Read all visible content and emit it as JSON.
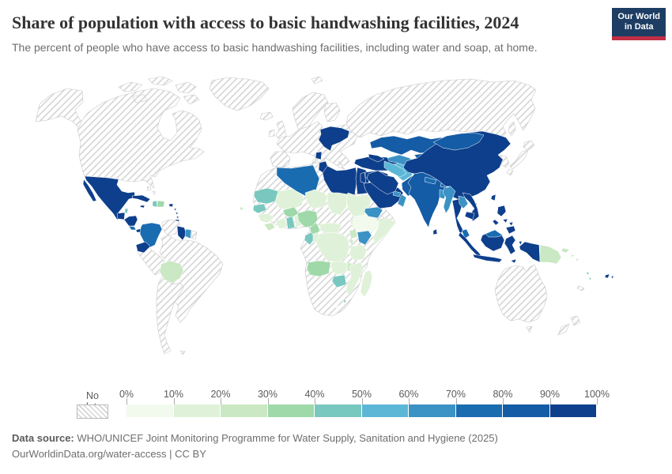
{
  "header": {
    "title": "Share of population with access to basic handwashing facilities, 2024",
    "subtitle": "The percent of people who have access to basic handwashing facilities, including water and soap, at home.",
    "logo_line1": "Our World",
    "logo_line2": "in Data",
    "logo_bg": "#1d3d63",
    "logo_accent": "#c12f45"
  },
  "legend": {
    "no_data_label": "No data",
    "ticks": [
      "0%",
      "10%",
      "20%",
      "30%",
      "40%",
      "50%",
      "60%",
      "70%",
      "80%",
      "90%",
      "100%"
    ],
    "bands": [
      {
        "range": "0-10%",
        "color": "#f2faee"
      },
      {
        "range": "10-20%",
        "color": "#dff2d9"
      },
      {
        "range": "20-30%",
        "color": "#c9e8c3"
      },
      {
        "range": "30-40%",
        "color": "#9fd9a9"
      },
      {
        "range": "40-50%",
        "color": "#79c8bf"
      },
      {
        "range": "50-60%",
        "color": "#5cb7d7"
      },
      {
        "range": "60-70%",
        "color": "#3b92c4"
      },
      {
        "range": "70-80%",
        "color": "#1a6cb1"
      },
      {
        "range": "80-90%",
        "color": "#145ca6"
      },
      {
        "range": "90-100%",
        "color": "#0e3f8c"
      }
    ]
  },
  "footer": {
    "source_prefix": "Data source:",
    "source_text": " WHO/UNICEF Joint Monitoring Programme for Water Supply, Sanitation and Hygiene (2025)",
    "url_text": "OurWorldinData.org/water-access | CC BY"
  },
  "chart_data": {
    "type": "heatmap",
    "subtype": "choropleth-world-map",
    "title": "Share of population with access to basic handwashing facilities, 2024",
    "unit": "%",
    "bins": [
      0,
      10,
      20,
      30,
      40,
      50,
      60,
      70,
      80,
      90,
      100
    ],
    "legend_position": "bottom",
    "regions": [
      {
        "id": "alaska",
        "name": "United States (Alaska)",
        "band": "no_data"
      },
      {
        "id": "canada_usa",
        "name": "Canada and United States",
        "band": "no_data"
      },
      {
        "id": "arctic_islands",
        "name": "Canadian Arctic Islands",
        "band": "no_data"
      },
      {
        "id": "greenland",
        "name": "Greenland",
        "band": "no_data"
      },
      {
        "id": "iceland",
        "name": "Iceland",
        "band": "no_data"
      },
      {
        "id": "svalbard",
        "name": "Svalbard",
        "band": "no_data"
      },
      {
        "id": "uk",
        "name": "United Kingdom",
        "band": "no_data"
      },
      {
        "id": "ireland",
        "name": "Ireland",
        "band": "no_data"
      },
      {
        "id": "scandinavia",
        "name": "Norway and Sweden",
        "band": "no_data"
      },
      {
        "id": "finland",
        "name": "Finland",
        "band": "no_data"
      },
      {
        "id": "europe_mainland",
        "name": "Mainland Europe",
        "band": "no_data"
      },
      {
        "id": "sardinia",
        "name": "Sardinia",
        "band": "no_data"
      },
      {
        "id": "russia",
        "name": "Russia",
        "band": "no_data"
      },
      {
        "id": "sakhalin",
        "name": "Sakhalin",
        "band": "no_data"
      },
      {
        "id": "ukraine",
        "name": "Ukraine",
        "band": 10
      },
      {
        "id": "serbia",
        "name": "Serbia",
        "band": 10
      },
      {
        "id": "africa_base",
        "name": "Africa (no data regions)",
        "band": "no_data"
      },
      {
        "id": "algeria",
        "name": "Algeria",
        "band": 8
      },
      {
        "id": "tunisia",
        "name": "Tunisia",
        "band": 10
      },
      {
        "id": "libya",
        "name": "Libya",
        "band": 10
      },
      {
        "id": "egypt",
        "name": "Egypt",
        "band": 10
      },
      {
        "id": "mauritania",
        "name": "Mauritania",
        "band": 5
      },
      {
        "id": "senegal",
        "name": "Senegal",
        "band": 5
      },
      {
        "id": "guinea",
        "name": "Guinea",
        "band": 2
      },
      {
        "id": "sierra_leone_liberia",
        "name": "Sierra Leone and Liberia",
        "band": 3
      },
      {
        "id": "mali",
        "name": "Mali",
        "band": 2
      },
      {
        "id": "burkina_faso",
        "name": "Burkina Faso",
        "band": 4
      },
      {
        "id": "ivory_coast",
        "name": "Cote d'Ivoire",
        "band": 2
      },
      {
        "id": "ghana",
        "name": "Ghana",
        "band": 5
      },
      {
        "id": "togo_benin",
        "name": "Togo and Benin",
        "band": 2
      },
      {
        "id": "niger",
        "name": "Niger",
        "band": 2
      },
      {
        "id": "nigeria",
        "name": "Nigeria",
        "band": 4
      },
      {
        "id": "chad",
        "name": "Chad",
        "band": 2
      },
      {
        "id": "sudan",
        "name": "Sudan",
        "band": 2
      },
      {
        "id": "cameroon",
        "name": "Cameroon",
        "band": 4
      },
      {
        "id": "central_african_republic",
        "name": "Central African Republic",
        "band": 2
      },
      {
        "id": "south_sudan",
        "name": "South Sudan",
        "band": 2
      },
      {
        "id": "ethiopia",
        "name": "Ethiopia",
        "band": 1
      },
      {
        "id": "somalia",
        "name": "Somalia",
        "band": 2
      },
      {
        "id": "eritrea_djibouti",
        "name": "Eritrea and Djibouti",
        "band": "no_data"
      },
      {
        "id": "kenya",
        "name": "Kenya",
        "band": 7
      },
      {
        "id": "uganda",
        "name": "Uganda",
        "band": 3
      },
      {
        "id": "rwanda_burundi",
        "name": "Rwanda and Burundi",
        "band": 3
      },
      {
        "id": "gabon",
        "name": "Gabon",
        "band": 5
      },
      {
        "id": "congo",
        "name": "Congo",
        "band": 2
      },
      {
        "id": "drc",
        "name": "Democratic Republic of Congo",
        "band": 2
      },
      {
        "id": "tanzania",
        "name": "Tanzania",
        "band": 2
      },
      {
        "id": "angola",
        "name": "Angola",
        "band": 4
      },
      {
        "id": "zambia",
        "name": "Zambia",
        "band": 2
      },
      {
        "id": "malawi",
        "name": "Malawi",
        "band": 3
      },
      {
        "id": "mozambique",
        "name": "Mozambique",
        "band": 2
      },
      {
        "id": "zimbabwe",
        "name": "Zimbabwe",
        "band": 5
      },
      {
        "id": "lesotho",
        "name": "Lesotho",
        "band": 1
      },
      {
        "id": "eswatini",
        "name": "Eswatini",
        "band": 5
      },
      {
        "id": "madagascar",
        "name": "Madagascar",
        "band": 2
      },
      {
        "id": "cape_verde",
        "name": "Cape Verde",
        "band": 3
      },
      {
        "id": "turkey",
        "name": "Turkey",
        "band": 10
      },
      {
        "id": "caucasus",
        "name": "Georgia, Armenia and Azerbaijan",
        "band": 10
      },
      {
        "id": "syria_iraq",
        "name": "Syria and Iraq",
        "band": 10
      },
      {
        "id": "levant",
        "name": "Jordan, Israel and Lebanon",
        "band": 10
      },
      {
        "id": "saudi_arabia",
        "name": "Saudi Arabia",
        "band": 10
      },
      {
        "id": "yemen",
        "name": "Yemen",
        "band": 7
      },
      {
        "id": "oman",
        "name": "Oman",
        "band": 7
      },
      {
        "id": "uae",
        "name": "United Arab Emirates",
        "band": 7
      },
      {
        "id": "iran",
        "name": "Iran",
        "band": 10
      },
      {
        "id": "afghanistan",
        "name": "Afghanistan",
        "band": 6
      },
      {
        "id": "pakistan",
        "name": "Pakistan",
        "band": 9
      },
      {
        "id": "kazakhstan",
        "name": "Kazakhstan",
        "band": 9
      },
      {
        "id": "uzbekistan",
        "name": "Uzbekistan",
        "band": 7
      },
      {
        "id": "turkmenistan",
        "name": "Turkmenistan",
        "band": 6
      },
      {
        "id": "kyrgyzstan",
        "name": "Kyrgyzstan",
        "band": 9
      },
      {
        "id": "tajikistan",
        "name": "Tajikistan",
        "band": 10
      },
      {
        "id": "india",
        "name": "India",
        "band": 9
      },
      {
        "id": "nepal",
        "name": "Nepal",
        "band": 8
      },
      {
        "id": "bhutan",
        "name": "Bhutan",
        "band": 8
      },
      {
        "id": "bangladesh",
        "name": "Bangladesh",
        "band": 7
      },
      {
        "id": "sri_lanka",
        "name": "Sri Lanka",
        "band": 10
      },
      {
        "id": "china",
        "name": "China",
        "band": 10
      },
      {
        "id": "mongolia",
        "name": "Mongolia",
        "band": 9
      },
      {
        "id": "korea",
        "name": "Korea",
        "band": "no_data"
      },
      {
        "id": "japan",
        "name": "Japan",
        "band": "no_data"
      },
      {
        "id": "taiwan",
        "name": "Taiwan",
        "band": 10
      },
      {
        "id": "hainan",
        "name": "Hainan",
        "band": 10
      },
      {
        "id": "myanmar",
        "name": "Myanmar",
        "band": 7
      },
      {
        "id": "thailand",
        "name": "Thailand",
        "band": 10
      },
      {
        "id": "laos",
        "name": "Laos",
        "band": 7
      },
      {
        "id": "vietnam",
        "name": "Vietnam",
        "band": 10
      },
      {
        "id": "cambodia",
        "name": "Cambodia",
        "band": 10
      },
      {
        "id": "malaysia_peninsula",
        "name": "Malaysia (Peninsula)",
        "band": 8
      },
      {
        "id": "sumatra",
        "name": "Indonesia (Sumatra)",
        "band": 10
      },
      {
        "id": "java",
        "name": "Indonesia (Java)",
        "band": 10
      },
      {
        "id": "borneo",
        "name": "Indonesia (Kalimantan)",
        "band": 10
      },
      {
        "id": "malaysia_borneo",
        "name": "Malaysia (Borneo)",
        "band": 8
      },
      {
        "id": "sulawesi",
        "name": "Indonesia (Sulawesi)",
        "band": 10
      },
      {
        "id": "maluku",
        "name": "Indonesia (Maluku)",
        "band": 10
      },
      {
        "id": "timor",
        "name": "Timor",
        "band": 10
      },
      {
        "id": "philippines",
        "name": "Philippines",
        "band": 10
      },
      {
        "id": "west_papua",
        "name": "Indonesia (Papua)",
        "band": 10
      },
      {
        "id": "papua_new_guinea",
        "name": "Papua New Guinea",
        "band": 3
      },
      {
        "id": "new_britain",
        "name": "New Britain",
        "band": 3
      },
      {
        "id": "solomon_islands",
        "name": "Solomon Islands",
        "band": 3
      },
      {
        "id": "vanuatu",
        "name": "Vanuatu",
        "band": 5
      },
      {
        "id": "fiji",
        "name": "Fiji",
        "band": 10
      },
      {
        "id": "new_caledonia",
        "name": "New Caledonia",
        "band": "no_data"
      },
      {
        "id": "australia",
        "name": "Australia",
        "band": "no_data"
      },
      {
        "id": "tasmania",
        "name": "Tasmania",
        "band": "no_data"
      },
      {
        "id": "new_zealand",
        "name": "New Zealand",
        "band": "no_data"
      },
      {
        "id": "mexico",
        "name": "Mexico",
        "band": 10
      },
      {
        "id": "guatemala",
        "name": "Guatemala",
        "band": 10
      },
      {
        "id": "belize",
        "name": "Belize",
        "band": 5
      },
      {
        "id": "honduras_nicaragua",
        "name": "Honduras and Nicaragua",
        "band": 10
      },
      {
        "id": "costa_rica",
        "name": "Costa Rica",
        "band": 8
      },
      {
        "id": "panama",
        "name": "Panama",
        "band": 10
      },
      {
        "id": "cuba",
        "name": "Cuba",
        "band": 10
      },
      {
        "id": "jamaica",
        "name": "Jamaica",
        "band": 10
      },
      {
        "id": "haiti",
        "name": "Haiti",
        "band": 5
      },
      {
        "id": "dominican_republic",
        "name": "Dominican Republic",
        "band": 4
      },
      {
        "id": "puerto_rico",
        "name": "Puerto Rico",
        "band": 10
      },
      {
        "id": "bahamas",
        "name": "Bahamas",
        "band": "no_data"
      },
      {
        "id": "lesser_antilles",
        "name": "Lesser Antilles",
        "band": 10
      },
      {
        "id": "trinidad",
        "name": "Trinidad and Tobago",
        "band": 10
      },
      {
        "id": "venezuela",
        "name": "Venezuela",
        "band": "no_data"
      },
      {
        "id": "french_guiana",
        "name": "French Guiana",
        "band": "no_data"
      },
      {
        "id": "brazil",
        "name": "Brazil",
        "band": "no_data"
      },
      {
        "id": "peru",
        "name": "Peru",
        "band": "no_data"
      },
      {
        "id": "southern_cone",
        "name": "Argentina, Chile, Paraguay and Uruguay",
        "band": "no_data"
      },
      {
        "id": "falklands",
        "name": "Falkland Islands",
        "band": "no_data"
      },
      {
        "id": "colombia",
        "name": "Colombia",
        "band": 8
      },
      {
        "id": "ecuador",
        "name": "Ecuador",
        "band": 10
      },
      {
        "id": "guyana",
        "name": "Guyana",
        "band": 10
      },
      {
        "id": "suriname",
        "name": "Suriname",
        "band": 7
      },
      {
        "id": "bolivia",
        "name": "Bolivia",
        "band": 3
      }
    ]
  }
}
